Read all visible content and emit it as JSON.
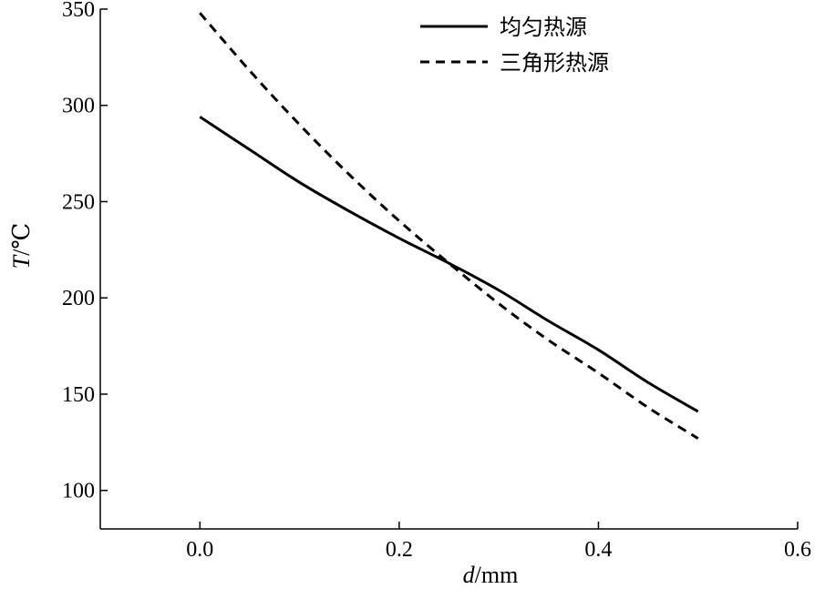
{
  "chart_data": {
    "type": "line",
    "xlabel": {
      "var": "d",
      "sep": "/",
      "unit": "mm"
    },
    "ylabel": {
      "var": "T",
      "sep": "/",
      "unit": "℃"
    },
    "xlim": [
      -0.1,
      0.6
    ],
    "ylim": [
      80,
      350
    ],
    "xticks": [
      0.0,
      0.2,
      0.4,
      0.6
    ],
    "xtick_labels": [
      "0.0",
      "0.2",
      "0.4",
      "0.6"
    ],
    "yticks": [
      100,
      150,
      200,
      250,
      300,
      350
    ],
    "ytick_labels": [
      "100",
      "150",
      "200",
      "250",
      "300",
      "350"
    ],
    "grid": false,
    "legend_position": "top-right",
    "x": [
      0.0,
      0.05,
      0.1,
      0.15,
      0.2,
      0.25,
      0.3,
      0.35,
      0.4,
      0.45,
      0.5
    ],
    "series": [
      {
        "name": "均匀热源",
        "style": "solid",
        "color": "#000000",
        "values": [
          294,
          277,
          260,
          245,
          231,
          218,
          204,
          188,
          173,
          156,
          141
        ]
      },
      {
        "name": "三角形热源",
        "style": "dashed",
        "color": "#000000",
        "values": [
          348,
          318,
          290,
          264,
          240,
          218,
          197,
          178,
          161,
          143,
          127
        ]
      }
    ]
  }
}
